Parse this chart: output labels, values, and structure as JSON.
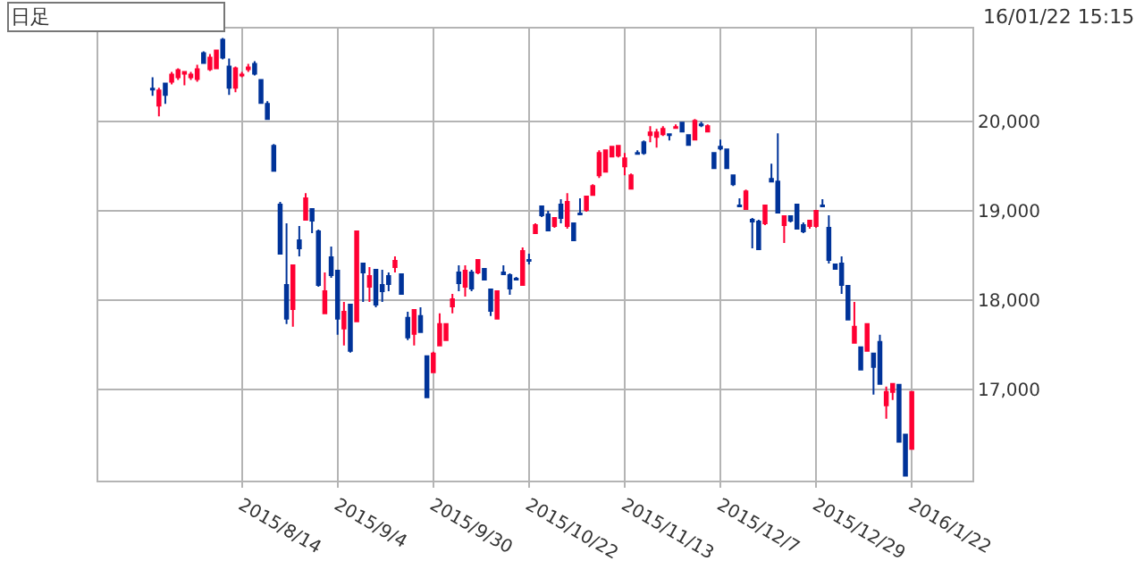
{
  "chart_data": {
    "type": "candlestick",
    "categories": [
      null,
      null,
      null,
      null,
      null,
      null,
      null,
      null,
      null,
      null,
      null,
      null,
      null,
      null,
      "2015/8/14",
      null,
      null,
      null,
      null,
      null,
      null,
      null,
      null,
      null,
      null,
      null,
      null,
      null,
      null,
      "2015/9/4",
      null,
      null,
      null,
      null,
      null,
      null,
      null,
      null,
      null,
      null,
      null,
      null,
      null,
      null,
      "2015/9/30",
      null,
      null,
      null,
      null,
      null,
      null,
      null,
      null,
      null,
      null,
      null,
      null,
      null,
      null,
      "2015/10/22",
      null,
      null,
      null,
      null,
      null,
      null,
      null,
      null,
      null,
      null,
      null,
      null,
      null,
      null,
      "2015/11/13",
      null,
      null,
      null,
      null,
      null,
      null,
      null,
      null,
      null,
      null,
      null,
      null,
      null,
      null,
      "2015/12/7",
      null,
      null,
      null,
      null,
      null,
      null,
      null,
      null,
      null,
      null,
      null,
      null,
      null,
      null,
      "2015/12/29",
      null,
      null,
      null,
      null,
      null,
      null,
      null,
      null,
      null,
      null,
      null,
      null,
      null,
      null,
      "2016/1/22"
    ],
    "ohlc": [
      [
        20370,
        20500,
        20290,
        20360
      ],
      [
        20180,
        20380,
        20060,
        20350
      ],
      [
        20430,
        20430,
        20200,
        20300
      ],
      [
        20450,
        20560,
        20420,
        20530
      ],
      [
        20500,
        20600,
        20470,
        20580
      ],
      [
        20540,
        20570,
        20410,
        20560
      ],
      [
        20500,
        20560,
        20470,
        20530
      ],
      [
        20480,
        20640,
        20450,
        20590
      ],
      [
        20770,
        20790,
        20650,
        20660
      ],
      [
        20590,
        20760,
        20570,
        20720
      ],
      [
        20600,
        20810,
        20590,
        20800
      ],
      [
        20920,
        20940,
        20700,
        20720
      ],
      [
        20620,
        20710,
        20300,
        20380
      ],
      [
        20380,
        20620,
        20330,
        20600
      ],
      [
        20520,
        20560,
        20500,
        20530
      ],
      [
        20590,
        20650,
        20560,
        20610
      ],
      [
        20650,
        20680,
        20520,
        20540
      ],
      [
        20470,
        20480,
        20200,
        20210
      ],
      [
        20200,
        20230,
        20020,
        20030
      ],
      [
        19730,
        19750,
        19440,
        19450
      ],
      [
        19070,
        19100,
        18510,
        18520
      ],
      [
        18170,
        18860,
        17730,
        17790
      ],
      [
        17900,
        18400,
        17700,
        18390
      ],
      [
        18670,
        18830,
        18490,
        18580
      ],
      [
        18900,
        19200,
        18890,
        19140
      ],
      [
        19020,
        19030,
        18750,
        18890
      ],
      [
        18770,
        18790,
        18150,
        18170
      ],
      [
        17850,
        18310,
        17850,
        18100
      ],
      [
        18480,
        18600,
        18250,
        18280
      ],
      [
        18330,
        18330,
        17610,
        17790
      ],
      [
        17680,
        17980,
        17490,
        17870
      ],
      [
        17950,
        17950,
        17410,
        17430
      ],
      [
        17760,
        18770,
        17750,
        18770
      ],
      [
        18410,
        18420,
        17980,
        18310
      ],
      [
        18150,
        18370,
        17980,
        18270
      ],
      [
        18340,
        18340,
        17920,
        17950
      ],
      [
        18170,
        18340,
        17980,
        18100
      ],
      [
        18270,
        18310,
        18100,
        18180
      ],
      [
        18370,
        18490,
        18310,
        18440
      ],
      [
        18290,
        18300,
        18060,
        18070
      ],
      [
        17800,
        17870,
        17550,
        17580
      ],
      [
        17620,
        17890,
        17490,
        17890
      ],
      [
        17820,
        17920,
        17640,
        17640
      ],
      [
        17370,
        17370,
        16900,
        16910
      ],
      [
        17190,
        17420,
        17180,
        17400
      ],
      [
        17490,
        17850,
        17490,
        17730
      ],
      [
        17550,
        17740,
        17540,
        17730
      ],
      [
        17930,
        18070,
        17850,
        18010
      ],
      [
        18310,
        18390,
        18100,
        18190
      ],
      [
        18150,
        18390,
        18040,
        18330
      ],
      [
        18310,
        18340,
        18100,
        18130
      ],
      [
        18310,
        18460,
        18290,
        18450
      ],
      [
        18350,
        18360,
        18220,
        18230
      ],
      [
        18120,
        18120,
        17820,
        17880
      ],
      [
        17790,
        18100,
        17780,
        18100
      ],
      [
        18310,
        18390,
        18280,
        18290
      ],
      [
        18280,
        18300,
        18060,
        18130
      ],
      [
        18240,
        18260,
        18220,
        18230
      ],
      [
        18170,
        18590,
        18160,
        18550
      ],
      [
        18450,
        18520,
        18400,
        18440
      ],
      [
        18750,
        18860,
        18740,
        18840
      ],
      [
        19050,
        19060,
        18930,
        18950
      ],
      [
        18960,
        19000,
        18770,
        18780
      ],
      [
        18830,
        18930,
        18810,
        18920
      ],
      [
        19070,
        19130,
        18860,
        18920
      ],
      [
        18830,
        19200,
        18800,
        19100
      ],
      [
        18860,
        18870,
        18660,
        18670
      ],
      [
        18970,
        19140,
        18950,
        18960
      ],
      [
        19010,
        19170,
        18990,
        19160
      ],
      [
        19180,
        19300,
        19170,
        19280
      ],
      [
        19400,
        19680,
        19370,
        19650
      ],
      [
        19440,
        19690,
        19430,
        19680
      ],
      [
        19610,
        19730,
        19600,
        19720
      ],
      [
        19620,
        19740,
        19600,
        19730
      ],
      [
        19500,
        19650,
        19400,
        19590
      ],
      [
        19250,
        19420,
        19240,
        19400
      ],
      [
        19650,
        19680,
        19630,
        19640
      ],
      [
        19770,
        19790,
        19630,
        19650
      ],
      [
        19850,
        19950,
        19770,
        19880
      ],
      [
        19830,
        19920,
        19710,
        19880
      ],
      [
        19860,
        19950,
        19840,
        19920
      ],
      [
        19860,
        19870,
        19790,
        19850
      ],
      [
        19930,
        19970,
        19920,
        19940
      ],
      [
        19990,
        20000,
        19880,
        19890
      ],
      [
        19850,
        19860,
        19730,
        19740
      ],
      [
        19800,
        20030,
        19790,
        20010
      ],
      [
        19970,
        20000,
        19940,
        19960
      ],
      [
        19890,
        19970,
        19880,
        19950
      ],
      [
        19650,
        19660,
        19470,
        19480
      ],
      [
        19720,
        19800,
        19680,
        19700
      ],
      [
        19690,
        19700,
        19470,
        19480
      ],
      [
        19400,
        19410,
        19280,
        19300
      ],
      [
        19060,
        19140,
        19040,
        19050
      ],
      [
        19020,
        19240,
        19010,
        19220
      ],
      [
        18900,
        18920,
        18580,
        18880
      ],
      [
        18880,
        18900,
        18560,
        18570
      ],
      [
        18860,
        19070,
        18840,
        19060
      ],
      [
        19360,
        19530,
        19320,
        19330
      ],
      [
        19330,
        19870,
        18970,
        18980
      ],
      [
        18840,
        18940,
        18640,
        18940
      ],
      [
        18940,
        18950,
        18870,
        18890
      ],
      [
        19070,
        19080,
        18790,
        18800
      ],
      [
        18840,
        18870,
        18750,
        18770
      ],
      [
        18830,
        18900,
        18800,
        18890
      ],
      [
        18830,
        19000,
        18810,
        19000
      ],
      [
        19060,
        19130,
        19040,
        19050
      ],
      [
        18810,
        18950,
        18410,
        18450
      ],
      [
        18400,
        18410,
        18340,
        18350
      ],
      [
        18410,
        18490,
        18070,
        18170
      ],
      [
        18160,
        18160,
        17770,
        17780
      ],
      [
        17520,
        17980,
        17510,
        17700
      ],
      [
        17470,
        17480,
        17210,
        17220
      ],
      [
        17430,
        17740,
        17420,
        17730
      ],
      [
        17400,
        17400,
        16940,
        17250
      ],
      [
        17530,
        17610,
        17060,
        17060
      ],
      [
        16820,
        17030,
        16670,
        16970
      ],
      [
        16970,
        17070,
        16880,
        17060
      ],
      [
        17050,
        17050,
        16400,
        16410
      ],
      [
        16490,
        16500,
        16020,
        16030
      ],
      [
        16330,
        16980,
        16330,
        16970
      ]
    ],
    "colors": [
      "#003399",
      "#ff0033",
      "#003399",
      "#ff0033",
      "#ff0033",
      "#ff0033",
      "#ff0033",
      "#ff0033",
      "#003399",
      "#ff0033",
      "#ff0033",
      "#003399",
      "#003399",
      "#ff0033",
      "#ff0033",
      "#ff0033",
      "#003399",
      "#003399",
      "#003399",
      "#003399",
      "#003399",
      "#003399",
      "#ff0033",
      "#003399",
      "#ff0033",
      "#003399",
      "#003399",
      "#ff0033",
      "#003399",
      "#003399",
      "#ff0033",
      "#003399",
      "#ff0033",
      "#003399",
      "#ff0033",
      "#003399",
      "#003399",
      "#003399",
      "#ff0033",
      "#003399",
      "#003399",
      "#ff0033",
      "#003399",
      "#003399",
      "#ff0033",
      "#ff0033",
      "#ff0033",
      "#ff0033",
      "#003399",
      "#ff0033",
      "#003399",
      "#ff0033",
      "#003399",
      "#003399",
      "#ff0033",
      "#003399",
      "#003399",
      "#003399",
      "#ff0033",
      "#003399",
      "#ff0033",
      "#003399",
      "#003399",
      "#ff0033",
      "#003399",
      "#ff0033",
      "#003399",
      "#003399",
      "#ff0033",
      "#ff0033",
      "#ff0033",
      "#ff0033",
      "#ff0033",
      "#ff0033",
      "#ff0033",
      "#ff0033",
      "#003399",
      "#003399",
      "#ff0033",
      "#ff0033",
      "#ff0033",
      "#003399",
      "#ff0033",
      "#003399",
      "#003399",
      "#ff0033",
      "#003399",
      "#ff0033",
      "#003399",
      "#003399",
      "#003399",
      "#003399",
      "#003399",
      "#ff0033",
      "#003399",
      "#003399",
      "#ff0033",
      "#003399",
      "#003399",
      "#ff0033",
      "#003399",
      "#003399",
      "#003399",
      "#ff0033",
      "#ff0033",
      "#003399",
      "#003399",
      "#003399",
      "#003399",
      "#003399",
      "#ff0033",
      "#003399",
      "#ff0033",
      "#003399",
      "#003399",
      "#ff0033",
      "#ff0033",
      "#003399",
      "#003399",
      "#ff0033"
    ],
    "ylim": [
      15975,
      21045
    ],
    "yticks": [
      {
        "value": 17000,
        "label": "17,000"
      },
      {
        "value": 18000,
        "label": "18,000"
      },
      {
        "value": 19000,
        "label": "19,000"
      },
      {
        "value": 20000,
        "label": "20,000"
      }
    ],
    "grid": true,
    "annotations": [
      "日足",
      "16/01/22 15:15"
    ]
  }
}
